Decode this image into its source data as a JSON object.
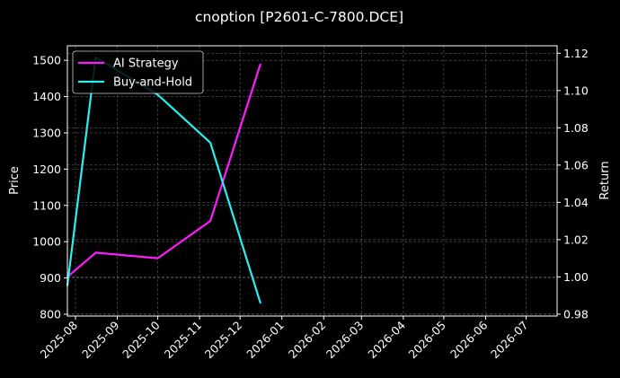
{
  "chart_data": {
    "type": "line",
    "title": "cnoption [P2601-C-7800.DCE]",
    "xlabel": "",
    "ylabel_left": "Price",
    "ylabel_right": "Return",
    "x_ticks": [
      "2025-08",
      "2025-09",
      "2025-10",
      "2025-11",
      "2025-12",
      "2026-01",
      "2026-02",
      "2026-03",
      "2026-04",
      "2026-05",
      "2026-06",
      "2026-07"
    ],
    "xlim": [
      "2025-07-26",
      "2026-07-24"
    ],
    "ylim_left": [
      795,
      1540
    ],
    "ylim_right": [
      0.979,
      1.124
    ],
    "y_ticks_left": [
      800,
      900,
      1000,
      1100,
      1200,
      1300,
      1400,
      1500
    ],
    "y_ticks_right": [
      0.98,
      1.0,
      1.02,
      1.04,
      1.06,
      1.08,
      1.1,
      1.12
    ],
    "grid": true,
    "legend_position": "top-left",
    "series": [
      {
        "name": "AI Strategy",
        "axis": "right",
        "color": "#ff1aff",
        "x": [
          "2025-07-26",
          "2025-08-16",
          "2025-10-01",
          "2025-11-09",
          "2025-12-16"
        ],
        "values": [
          1.0,
          1.013,
          1.01,
          1.03,
          1.114
        ]
      },
      {
        "name": "Buy-and-Hold",
        "axis": "left",
        "color": "#29f0f0",
        "x": [
          "2025-07-26",
          "2025-08-16",
          "2025-10-01",
          "2025-11-09",
          "2025-12-16"
        ],
        "values": [
          880,
          1508,
          1405,
          1273,
          832
        ]
      }
    ]
  }
}
